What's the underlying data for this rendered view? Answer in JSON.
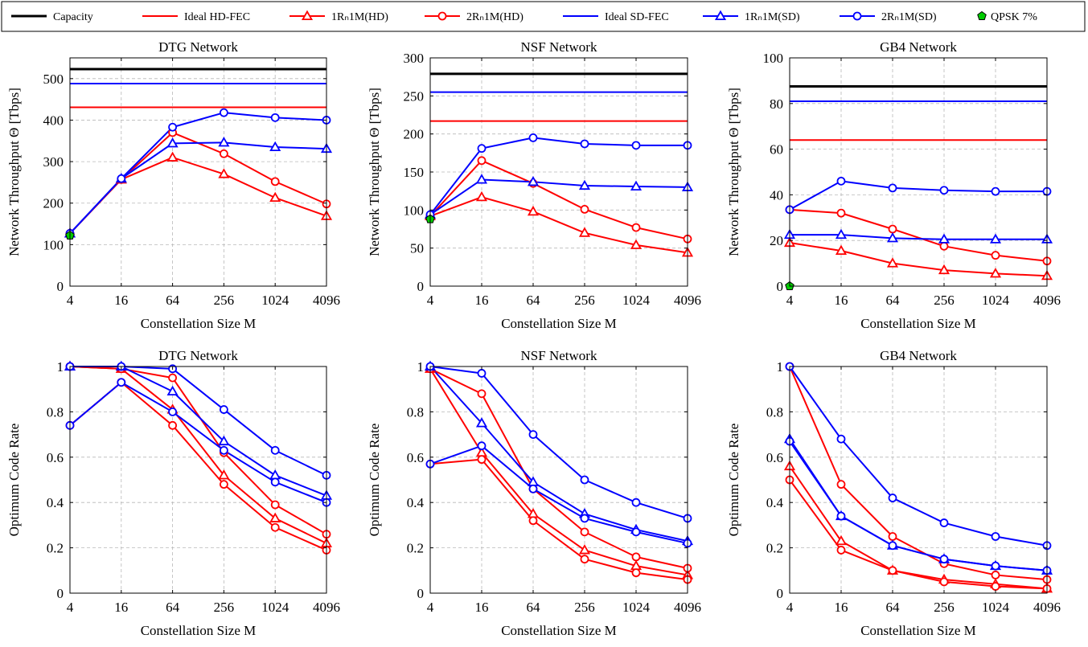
{
  "legend": {
    "entries": [
      {
        "label": "Capacity",
        "key": "capacity"
      },
      {
        "label": "Ideal HD-FEC",
        "key": "ideal_hd"
      },
      {
        "label": "1Rₙ1M(HD)",
        "key": "r1_hd"
      },
      {
        "label": "2Rₙ1M(HD)",
        "key": "r2_hd"
      },
      {
        "label": "Ideal SD-FEC",
        "key": "ideal_sd"
      },
      {
        "label": "1Rₙ1M(SD)",
        "key": "r1_sd"
      },
      {
        "label": "2Rₙ1M(SD)",
        "key": "r2_sd"
      },
      {
        "label": "QPSK 7%",
        "key": "qpsk"
      }
    ]
  },
  "styles": {
    "capacity": {
      "color": "#000000",
      "marker": "none",
      "width": 3
    },
    "ideal_hd": {
      "color": "#ff0000",
      "marker": "none",
      "width": 2
    },
    "r1_hd": {
      "color": "#ff0000",
      "marker": "triangle",
      "width": 2
    },
    "r2_hd": {
      "color": "#ff0000",
      "marker": "circle",
      "width": 2
    },
    "ideal_sd": {
      "color": "#0000ff",
      "marker": "none",
      "width": 2
    },
    "r1_sd": {
      "color": "#0000ff",
      "marker": "triangle",
      "width": 2
    },
    "r2_sd": {
      "color": "#0000ff",
      "marker": "circle",
      "width": 2
    },
    "qpsk": {
      "color": "#00cc00",
      "marker": "pentagon",
      "width": 1
    }
  },
  "chart_data": [
    {
      "type": "line",
      "title": "DTG Network",
      "xlabel": "Constellation Size M",
      "ylabel": "Network Throughput Θ [Tbps]",
      "x_ticks": [
        "4",
        "16",
        "64",
        "256",
        "1024",
        "4096"
      ],
      "ylim": [
        0,
        550
      ],
      "y_ticks": [
        0,
        100,
        200,
        300,
        400,
        500
      ],
      "grid": true,
      "series": [
        {
          "key": "capacity",
          "values": [
            523,
            523,
            523,
            523,
            523,
            523
          ]
        },
        {
          "key": "ideal_sd",
          "values": [
            488,
            488,
            488,
            488,
            488,
            488
          ]
        },
        {
          "key": "ideal_hd",
          "values": [
            431,
            431,
            431,
            431,
            431,
            431
          ]
        },
        {
          "key": "r1_hd",
          "values": [
            127,
            257,
            310,
            270,
            213,
            169
          ]
        },
        {
          "key": "r2_hd",
          "values": [
            127,
            257,
            370,
            319,
            252,
            198
          ]
        },
        {
          "key": "r1_sd",
          "values": [
            127,
            259,
            344,
            346,
            335,
            331
          ]
        },
        {
          "key": "r2_sd",
          "values": [
            127,
            259,
            383,
            418,
            406,
            400
          ]
        },
        {
          "key": "qpsk",
          "values": [
            122,
            null,
            null,
            null,
            null,
            null
          ]
        }
      ]
    },
    {
      "type": "line",
      "title": "NSF Network",
      "xlabel": "Constellation Size M",
      "ylabel": "Network Throughput Θ [Tbps]",
      "x_ticks": [
        "4",
        "16",
        "64",
        "256",
        "1024",
        "4096"
      ],
      "ylim": [
        0,
        300
      ],
      "y_ticks": [
        0,
        50,
        100,
        150,
        200,
        250,
        300
      ],
      "grid": true,
      "series": [
        {
          "key": "capacity",
          "values": [
            279,
            279,
            279,
            279,
            279,
            279
          ]
        },
        {
          "key": "ideal_sd",
          "values": [
            255,
            255,
            255,
            255,
            255,
            255
          ]
        },
        {
          "key": "ideal_hd",
          "values": [
            217,
            217,
            217,
            217,
            217,
            217
          ]
        },
        {
          "key": "r1_hd",
          "values": [
            92,
            117,
            98,
            70,
            54,
            44
          ]
        },
        {
          "key": "r2_hd",
          "values": [
            92,
            165,
            135,
            101,
            77,
            62
          ]
        },
        {
          "key": "r1_sd",
          "values": [
            94,
            140,
            137,
            132,
            131,
            130
          ]
        },
        {
          "key": "r2_sd",
          "values": [
            94,
            181,
            195,
            187,
            185,
            185
          ]
        },
        {
          "key": "qpsk",
          "values": [
            88,
            null,
            null,
            null,
            null,
            null
          ]
        }
      ]
    },
    {
      "type": "line",
      "title": "GB4 Network",
      "xlabel": "Constellation Size M",
      "ylabel": "Network Throughput Θ [Tbps]",
      "x_ticks": [
        "4",
        "16",
        "64",
        "256",
        "1024",
        "4096"
      ],
      "ylim": [
        0,
        100
      ],
      "y_ticks": [
        0,
        20,
        40,
        60,
        80,
        100
      ],
      "grid": true,
      "series": [
        {
          "key": "capacity",
          "values": [
            87.5,
            87.5,
            87.5,
            87.5,
            87.5,
            87.5
          ]
        },
        {
          "key": "ideal_sd",
          "values": [
            81,
            81,
            81,
            81,
            81,
            81
          ]
        },
        {
          "key": "ideal_hd",
          "values": [
            64,
            64,
            64,
            64,
            64,
            64
          ]
        },
        {
          "key": "r1_hd",
          "values": [
            19,
            15.5,
            10,
            7,
            5.5,
            4.5
          ]
        },
        {
          "key": "r2_hd",
          "values": [
            33.5,
            32,
            25,
            17.5,
            13.5,
            11
          ]
        },
        {
          "key": "r1_sd",
          "values": [
            22.5,
            22.5,
            21,
            20.5,
            20.5,
            20.5
          ]
        },
        {
          "key": "r2_sd",
          "values": [
            33.5,
            46,
            43,
            42,
            41.5,
            41.5
          ]
        },
        {
          "key": "qpsk",
          "values": [
            0,
            null,
            null,
            null,
            null,
            null
          ]
        }
      ]
    },
    {
      "type": "line",
      "title": "DTG Network",
      "xlabel": "Constellation Size M",
      "ylabel": "Optimum Code Rate",
      "x_ticks": [
        "4",
        "16",
        "64",
        "256",
        "1024",
        "4096"
      ],
      "ylim": [
        0,
        1
      ],
      "y_ticks": [
        0,
        0.2,
        0.4,
        0.6,
        0.8,
        1
      ],
      "grid": true,
      "series": [
        {
          "key": "r1_hd",
          "values": [
            1,
            0.99,
            0.81,
            0.52,
            0.33,
            0.22
          ]
        },
        {
          "key": "r2_hd",
          "values": [
            1,
            0.99,
            0.95,
            0.62,
            0.39,
            0.26
          ]
        },
        {
          "key": "r2_hd",
          "values": [
            0.74,
            0.93,
            0.74,
            0.48,
            0.29,
            0.19
          ]
        },
        {
          "key": "r1_sd",
          "values": [
            1,
            1,
            0.89,
            0.67,
            0.52,
            0.43
          ]
        },
        {
          "key": "r2_sd",
          "values": [
            1,
            1,
            0.99,
            0.81,
            0.63,
            0.52
          ]
        },
        {
          "key": "r2_sd",
          "values": [
            0.74,
            0.93,
            0.8,
            0.63,
            0.49,
            0.4
          ]
        }
      ]
    },
    {
      "type": "line",
      "title": "NSF Network",
      "xlabel": "Constellation Size M",
      "ylabel": "Optimum Code Rate",
      "x_ticks": [
        "4",
        "16",
        "64",
        "256",
        "1024",
        "4096"
      ],
      "ylim": [
        0,
        1
      ],
      "y_ticks": [
        0,
        0.2,
        0.4,
        0.6,
        0.8,
        1
      ],
      "grid": true,
      "series": [
        {
          "key": "r1_hd",
          "values": [
            0.99,
            0.62,
            0.35,
            0.19,
            0.12,
            0.08
          ]
        },
        {
          "key": "r2_hd",
          "values": [
            0.99,
            0.88,
            0.46,
            0.27,
            0.16,
            0.11
          ]
        },
        {
          "key": "r2_hd",
          "values": [
            0.57,
            0.59,
            0.32,
            0.15,
            0.09,
            0.06
          ]
        },
        {
          "key": "r1_sd",
          "values": [
            1,
            0.75,
            0.49,
            0.35,
            0.28,
            0.23
          ]
        },
        {
          "key": "r2_sd",
          "values": [
            1,
            0.97,
            0.7,
            0.5,
            0.4,
            0.33
          ]
        },
        {
          "key": "r2_sd",
          "values": [
            0.57,
            0.65,
            0.46,
            0.33,
            0.27,
            0.22
          ]
        }
      ]
    },
    {
      "type": "line",
      "title": "GB4 Network",
      "xlabel": "Constellation Size M",
      "ylabel": "Optimum Code Rate",
      "x_ticks": [
        "4",
        "16",
        "64",
        "256",
        "1024",
        "4096"
      ],
      "ylim": [
        0,
        1
      ],
      "y_ticks": [
        0,
        0.2,
        0.4,
        0.6,
        0.8,
        1
      ],
      "grid": true,
      "series": [
        {
          "key": "r1_hd",
          "values": [
            0.56,
            0.23,
            0.1,
            0.06,
            0.04,
            0.02
          ]
        },
        {
          "key": "r2_hd",
          "values": [
            1,
            0.48,
            0.25,
            0.13,
            0.08,
            0.06
          ]
        },
        {
          "key": "r2_hd",
          "values": [
            0.5,
            0.19,
            0.1,
            0.05,
            0.03,
            0.02
          ]
        },
        {
          "key": "r1_sd",
          "values": [
            0.68,
            0.34,
            0.21,
            0.15,
            0.12,
            0.1
          ]
        },
        {
          "key": "r2_sd",
          "values": [
            1,
            0.68,
            0.42,
            0.31,
            0.25,
            0.21
          ]
        },
        {
          "key": "r2_sd",
          "values": [
            0.67,
            0.34,
            0.21,
            0.15,
            0.12,
            0.1
          ]
        }
      ]
    }
  ]
}
